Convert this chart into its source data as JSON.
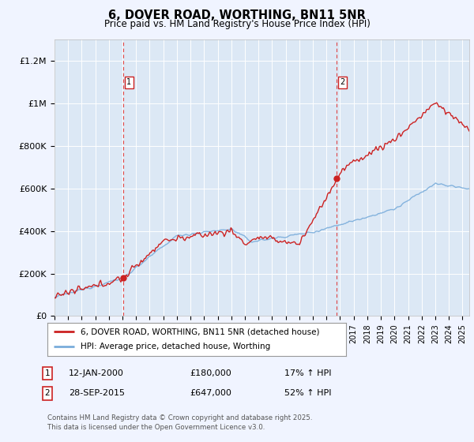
{
  "title": "6, DOVER ROAD, WORTHING, BN11 5NR",
  "subtitle": "Price paid vs. HM Land Registry's House Price Index (HPI)",
  "ylabel_ticks": [
    "£0",
    "£200K",
    "£400K",
    "£600K",
    "£800K",
    "£1M",
    "£1.2M"
  ],
  "ytick_values": [
    0,
    200000,
    400000,
    600000,
    800000,
    1000000,
    1200000
  ],
  "ylim": [
    0,
    1300000
  ],
  "xlim_start": 1995.0,
  "xlim_end": 2025.5,
  "hpi_color": "#7aaddb",
  "price_color": "#cc2222",
  "vline_color": "#dd4444",
  "sale1_date": 2000.04,
  "sale1_price": 180000,
  "sale2_date": 2015.74,
  "sale2_price": 647000,
  "legend_entry1": "6, DOVER ROAD, WORTHING, BN11 5NR (detached house)",
  "legend_entry2": "HPI: Average price, detached house, Worthing",
  "table_row1_date": "12-JAN-2000",
  "table_row1_price": "£180,000",
  "table_row1_hpi": "17% ↑ HPI",
  "table_row2_date": "28-SEP-2015",
  "table_row2_price": "£647,000",
  "table_row2_hpi": "52% ↑ HPI",
  "footnote": "Contains HM Land Registry data © Crown copyright and database right 2025.\nThis data is licensed under the Open Government Licence v3.0.",
  "background_color": "#f0f4ff",
  "plot_bg_color": "#dce8f5"
}
